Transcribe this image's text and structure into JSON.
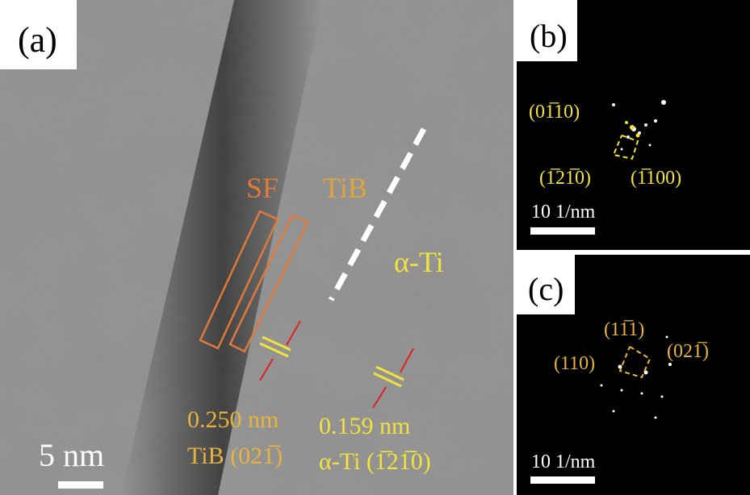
{
  "panel_a": {
    "label": "(a)",
    "sf": "SF",
    "tib": "TiB",
    "alpha_ti": "α-Ti",
    "spacing_1": "0.250 nm",
    "plane_1": "TiB (021̅)",
    "spacing_2": "0.159 nm",
    "plane_2": "α-Ti (1̅21̅0)",
    "scale": "5 nm"
  },
  "panel_b": {
    "label": "(b)",
    "spots": [
      "(01̅10)",
      "(1̅21̅0)",
      "(1̅100)"
    ],
    "scale": "10 1/nm"
  },
  "panel_c": {
    "label": "(c)",
    "spots": [
      "(11̅1)",
      "(110)",
      "(021̅)"
    ],
    "scale": "10 1/nm"
  }
}
